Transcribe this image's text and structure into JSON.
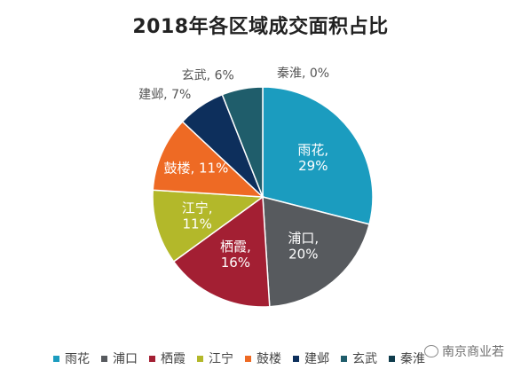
{
  "chart_data": {
    "type": "pie",
    "title": "2018年各区域成交面积占比",
    "categories": [
      "雨花",
      "浦口",
      "栖霞",
      "江宁",
      "鼓楼",
      "建邺",
      "玄武",
      "秦淮"
    ],
    "values": [
      29,
      20,
      16,
      11,
      11,
      7,
      6,
      0
    ],
    "unit": "%",
    "data_labels": [
      "雨花,\n29%",
      "浦口,\n20%",
      "栖霞,\n16%",
      "江宁,\n11%",
      "鼓楼, 11%",
      "建邺, 7%",
      "玄武, 6%",
      "秦淮, 0%"
    ],
    "legend": {
      "position": "bottom"
    },
    "colors": [
      "#1B9CBF",
      "#575A5E",
      "#A31F33",
      "#B3B82A",
      "#EE6A24",
      "#0D2F5C",
      "#1F5D6B",
      "#0F3C4C"
    ]
  },
  "watermark": {
    "text": "南京商业若"
  }
}
